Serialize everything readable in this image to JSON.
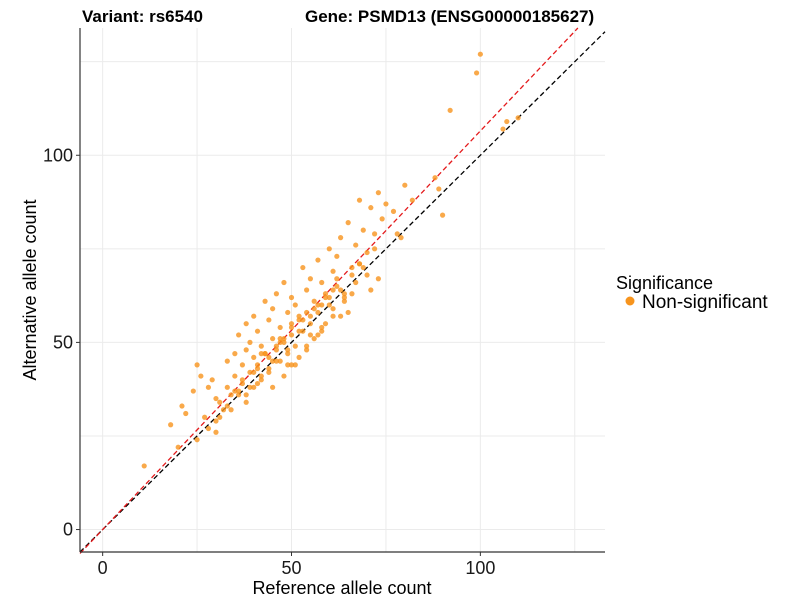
{
  "chart_data": {
    "type": "scatter",
    "title_left": "Variant: rs6540",
    "title_right": "Gene: PSMD13 (ENSG00000185627)",
    "xlabel": "Reference allele count",
    "ylabel": "Alternative allele count",
    "xlim": [
      -6,
      133
    ],
    "ylim": [
      -6,
      134
    ],
    "xticks": [
      0,
      50,
      100
    ],
    "yticks": [
      0,
      50,
      100
    ],
    "grid": true,
    "legend": {
      "title": "Significance",
      "placement": "right",
      "entries": [
        {
          "label": "Non-significant",
          "color": "#F7941D"
        }
      ]
    },
    "reference_lines": [
      {
        "name": "identity",
        "slope": 1,
        "intercept": 0,
        "color": "#000000",
        "style": "dashed"
      },
      {
        "name": "fit",
        "slope": 1.065,
        "intercept": 0,
        "color": "#E41A1C",
        "style": "dashed"
      }
    ],
    "point_color": "#F7941D",
    "series": [
      {
        "name": "Non-significant",
        "x": [
          11,
          18,
          20,
          21,
          22,
          24,
          25,
          26,
          27,
          28,
          29,
          30,
          30,
          31,
          32,
          33,
          33,
          34,
          35,
          35,
          36,
          36,
          37,
          37,
          38,
          38,
          39,
          39,
          40,
          40,
          40,
          41,
          41,
          42,
          42,
          43,
          43,
          44,
          44,
          45,
          45,
          45,
          46,
          46,
          47,
          47,
          48,
          48,
          48,
          49,
          49,
          50,
          50,
          50,
          51,
          51,
          52,
          52,
          53,
          53,
          54,
          54,
          55,
          55,
          56,
          56,
          57,
          57,
          58,
          58,
          59,
          60,
          60,
          61,
          61,
          62,
          63,
          63,
          64,
          65,
          66,
          67,
          68,
          68,
          69,
          70,
          71,
          72,
          73,
          74,
          75,
          77,
          79,
          80,
          82,
          88,
          89,
          90,
          92,
          99,
          100,
          106,
          107,
          110,
          25,
          28,
          31,
          34,
          36,
          38,
          39,
          41,
          42,
          44,
          46,
          47,
          49,
          50,
          51,
          53,
          54,
          55,
          57,
          58,
          59,
          61,
          62,
          64,
          65,
          67,
          69,
          71,
          73,
          33,
          37,
          40,
          43,
          45,
          48,
          52,
          56,
          60,
          63,
          66,
          70,
          35,
          41,
          46,
          50,
          54,
          58,
          62,
          44,
          52,
          57,
          61,
          66,
          30,
          38,
          47,
          55,
          64,
          72,
          78,
          42,
          49,
          59,
          68
        ],
        "y": [
          17,
          28,
          22,
          33,
          31,
          37,
          44,
          41,
          30,
          38,
          40,
          29,
          35,
          34,
          32,
          38,
          45,
          36,
          41,
          47,
          37,
          52,
          39,
          44,
          48,
          55,
          42,
          50,
          38,
          46,
          57,
          44,
          53,
          40,
          49,
          61,
          47,
          56,
          43,
          51,
          59,
          38,
          48,
          63,
          45,
          54,
          41,
          50,
          66,
          47,
          58,
          52,
          62,
          44,
          49,
          60,
          46,
          57,
          53,
          70,
          48,
          64,
          55,
          67,
          51,
          61,
          58,
          72,
          54,
          66,
          63,
          60,
          75,
          57,
          69,
          73,
          64,
          78,
          61,
          82,
          68,
          76,
          71,
          88,
          80,
          74,
          86,
          79,
          90,
          83,
          87,
          85,
          78,
          92,
          88,
          94,
          91,
          84,
          112,
          122,
          127,
          107,
          109,
          110,
          24,
          27,
          30,
          32,
          36,
          34,
          38,
          43,
          41,
          46,
          45,
          51,
          48,
          55,
          44,
          56,
          49,
          52,
          60,
          53,
          55,
          59,
          65,
          62,
          58,
          66,
          70,
          64,
          67,
          33,
          40,
          42,
          47,
          45,
          51,
          53,
          59,
          62,
          57,
          63,
          68,
          37,
          39,
          49,
          54,
          58,
          60,
          67,
          42,
          56,
          52,
          64,
          70,
          26,
          36,
          50,
          57,
          63,
          75,
          79,
          47,
          44,
          62,
          71
        ]
      }
    ]
  }
}
